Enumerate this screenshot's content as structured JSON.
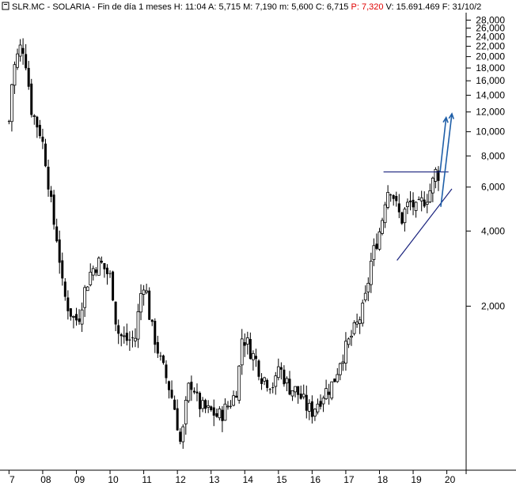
{
  "header": {
    "symbol": "SLR.MC - SOLARIA - Fin de día 1 meses",
    "h_label": "H:",
    "h_value": "11:04",
    "a_label": "A:",
    "a_value": "5,715",
    "M_label": "M:",
    "M_value": "7,190",
    "m_label": "m:",
    "m_value": "5,600",
    "c_label": "C:",
    "c_value": "6,715",
    "p_label": "P:",
    "p_value": "7,320",
    "v_label": "V:",
    "v_value": "15.691.469",
    "f_label": "F:",
    "f_value": "31/10/2"
  },
  "colors": {
    "background": "#ffffff",
    "candle": "#000000",
    "drawing": "#1a237e",
    "arrow": "#1f5fa8",
    "p_value": "#e00000"
  },
  "chart_data": {
    "type": "candlestick",
    "scale": "log",
    "ylim": [
      0.46,
      30
    ],
    "y_ticks": [
      {
        "v": 28,
        "label": "28,000"
      },
      {
        "v": 26,
        "label": "26,000"
      },
      {
        "v": 24,
        "label": "24,000"
      },
      {
        "v": 22,
        "label": "22,000"
      },
      {
        "v": 20,
        "label": "20,000"
      },
      {
        "v": 18,
        "label": "18,000"
      },
      {
        "v": 16,
        "label": "16,000"
      },
      {
        "v": 14,
        "label": "14,000"
      },
      {
        "v": 12,
        "label": "12,000"
      },
      {
        "v": 10,
        "label": "10,000"
      },
      {
        "v": 8,
        "label": "8,000"
      },
      {
        "v": 6,
        "label": "6,000"
      },
      {
        "v": 4,
        "label": "4,000"
      },
      {
        "v": 2,
        "label": "2,000"
      }
    ],
    "x_ticks": [
      {
        "t": 2007.0,
        "label": "7"
      },
      {
        "t": 2008.0,
        "label": "08"
      },
      {
        "t": 2009.0,
        "label": "09"
      },
      {
        "t": 2010.0,
        "label": "10"
      },
      {
        "t": 2011.0,
        "label": "11"
      },
      {
        "t": 2012.0,
        "label": "12"
      },
      {
        "t": 2013.0,
        "label": "13"
      },
      {
        "t": 2014.0,
        "label": "14"
      },
      {
        "t": 2015.0,
        "label": "15"
      },
      {
        "t": 2016.0,
        "label": "16"
      },
      {
        "t": 2017.0,
        "label": "17"
      },
      {
        "t": 2018.0,
        "label": "18"
      },
      {
        "t": 2019.0,
        "label": "19"
      },
      {
        "t": 2020.0,
        "label": "20"
      }
    ],
    "xlim": [
      2006.85,
      2020.55
    ],
    "close_path": [
      [
        2007.0,
        11
      ],
      [
        2007.05,
        14.5
      ],
      [
        2007.15,
        18
      ],
      [
        2007.25,
        20
      ],
      [
        2007.35,
        22
      ],
      [
        2007.45,
        21.5
      ],
      [
        2007.55,
        17
      ],
      [
        2007.65,
        12.5
      ],
      [
        2007.75,
        11.5
      ],
      [
        2007.85,
        10.5
      ],
      [
        2007.95,
        9.8
      ],
      [
        2008.1,
        7.5
      ],
      [
        2008.3,
        4.5
      ],
      [
        2008.45,
        3.6
      ],
      [
        2008.6,
        2.3
      ],
      [
        2008.75,
        2.0
      ],
      [
        2008.9,
        1.8
      ],
      [
        2009.05,
        1.75
      ],
      [
        2009.2,
        2.2
      ],
      [
        2009.4,
        2.7
      ],
      [
        2009.55,
        2.9
      ],
      [
        2009.7,
        3.0
      ],
      [
        2009.85,
        2.8
      ],
      [
        2010.0,
        2.6
      ],
      [
        2010.1,
        2.2
      ],
      [
        2010.2,
        1.6
      ],
      [
        2010.35,
        1.5
      ],
      [
        2010.55,
        1.45
      ],
      [
        2010.75,
        1.5
      ],
      [
        2010.9,
        2.2
      ],
      [
        2011.0,
        2.5
      ],
      [
        2011.1,
        2.2
      ],
      [
        2011.2,
        1.7
      ],
      [
        2011.35,
        1.45
      ],
      [
        2011.5,
        1.2
      ],
      [
        2011.65,
        1.05
      ],
      [
        2011.8,
        0.9
      ],
      [
        2011.95,
        0.75
      ],
      [
        2012.1,
        0.55
      ],
      [
        2012.2,
        0.68
      ],
      [
        2012.3,
        0.92
      ],
      [
        2012.45,
        1.0
      ],
      [
        2012.6,
        0.82
      ],
      [
        2012.75,
        0.78
      ],
      [
        2012.9,
        0.76
      ],
      [
        2013.05,
        0.75
      ],
      [
        2013.2,
        0.72
      ],
      [
        2013.35,
        0.75
      ],
      [
        2013.5,
        0.8
      ],
      [
        2013.65,
        0.85
      ],
      [
        2013.8,
        0.98
      ],
      [
        2013.9,
        1.5
      ],
      [
        2014.05,
        1.45
      ],
      [
        2014.2,
        1.3
      ],
      [
        2014.35,
        1.2
      ],
      [
        2014.5,
        1.05
      ],
      [
        2014.7,
        1.0
      ],
      [
        2014.9,
        0.96
      ],
      [
        2015.0,
        1.15
      ],
      [
        2015.15,
        1.05
      ],
      [
        2015.3,
        0.95
      ],
      [
        2015.5,
        0.92
      ],
      [
        2015.7,
        0.85
      ],
      [
        2015.85,
        0.78
      ],
      [
        2016.0,
        0.76
      ],
      [
        2016.15,
        0.82
      ],
      [
        2016.35,
        0.9
      ],
      [
        2016.55,
        0.95
      ],
      [
        2016.7,
        1.05
      ],
      [
        2016.85,
        1.25
      ],
      [
        2017.0,
        1.35
      ],
      [
        2017.15,
        1.5
      ],
      [
        2017.35,
        1.7
      ],
      [
        2017.55,
        2.0
      ],
      [
        2017.75,
        3.0
      ],
      [
        2017.9,
        3.6
      ],
      [
        2018.05,
        4.2
      ],
      [
        2018.2,
        5.8
      ],
      [
        2018.35,
        6.0
      ],
      [
        2018.5,
        5.0
      ],
      [
        2018.65,
        4.4
      ],
      [
        2018.8,
        5.0
      ],
      [
        2018.95,
        5.2
      ],
      [
        2019.1,
        4.8
      ],
      [
        2019.25,
        5.2
      ],
      [
        2019.4,
        5.5
      ],
      [
        2019.55,
        6.0
      ],
      [
        2019.65,
        6.9
      ],
      [
        2019.8,
        6.7
      ]
    ],
    "drawings": {
      "resistance": {
        "t1": 2018.12,
        "t2": 2020.05,
        "v": 6.9
      },
      "support": {
        "t1": 2018.52,
        "v1": 3.05,
        "t2": 2020.15,
        "v2": 5.9
      },
      "arrow1": {
        "t1": 2019.8,
        "v1": 6.9,
        "t2": 2019.98,
        "v2": 11.4
      },
      "arrow2": {
        "t1": 2019.82,
        "v1": 5.0,
        "t2": 2020.15,
        "v2": 11.8
      }
    }
  }
}
